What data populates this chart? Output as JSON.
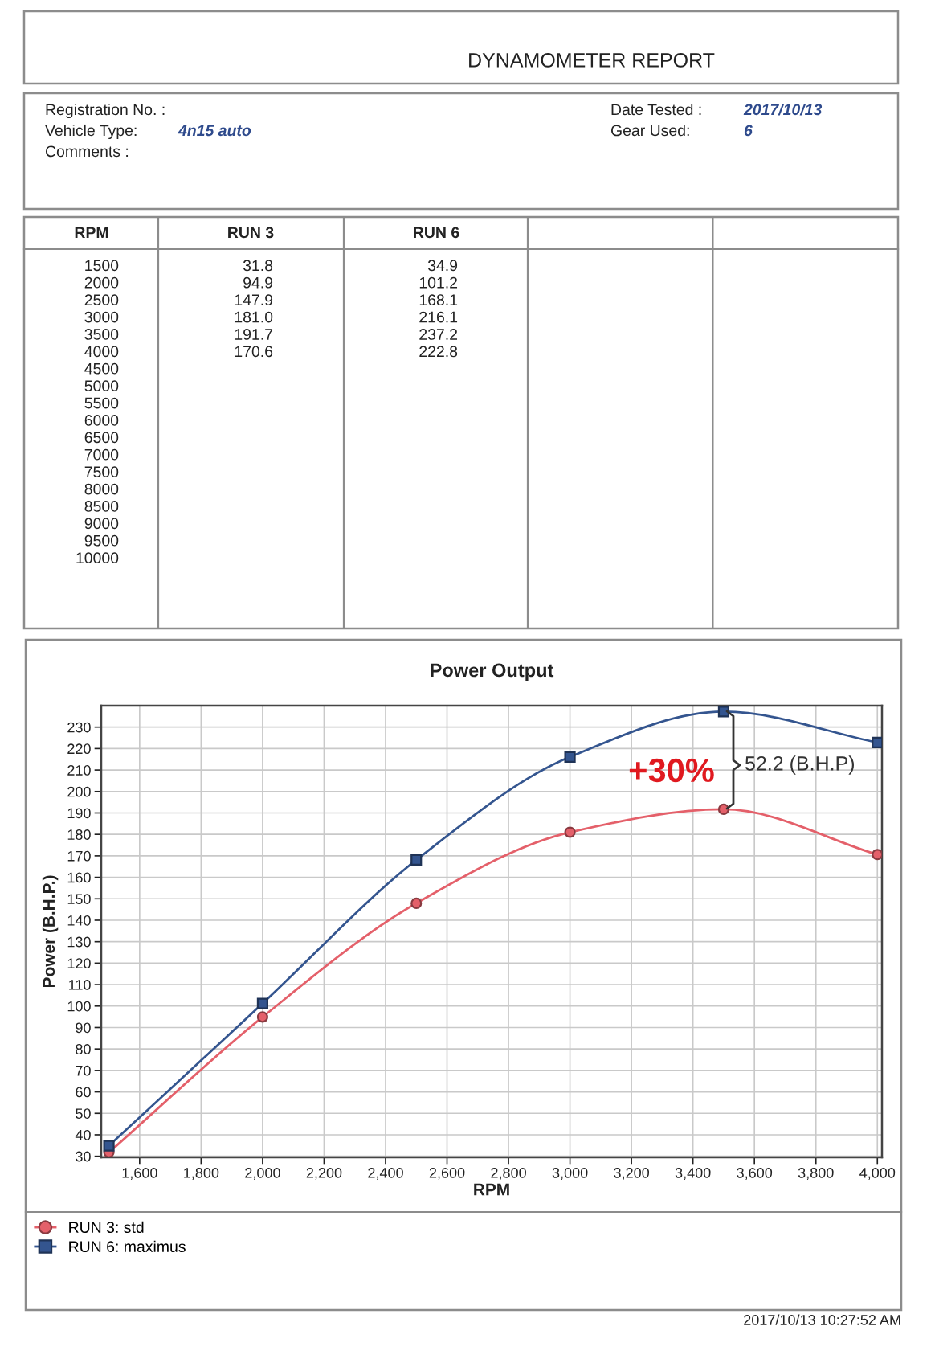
{
  "chart_data": {
    "type": "line",
    "title": "Power Output",
    "xlabel": "RPM",
    "ylabel": "Power (B.H.P.)",
    "x": [
      1500,
      2000,
      2500,
      3000,
      3500,
      4000
    ],
    "series": [
      {
        "name": "RUN 3: std",
        "color": "#e4606a",
        "marker": "circle",
        "values": [
          31.8,
          94.9,
          147.9,
          181.0,
          191.7,
          170.6
        ]
      },
      {
        "name": "RUN 6: maximus",
        "color": "#34558f",
        "marker": "square",
        "values": [
          34.9,
          101.2,
          168.1,
          216.1,
          237.2,
          222.8
        ]
      }
    ],
    "xlim": [
      1475,
      4015
    ],
    "ylim": [
      29.5,
      240
    ],
    "xticks": [
      {
        "value": 1600,
        "label": "1,600"
      },
      {
        "value": 1800,
        "label": "1,800"
      },
      {
        "value": 2000,
        "label": "2,000"
      },
      {
        "value": 2200,
        "label": "2,200"
      },
      {
        "value": 2400,
        "label": "2,400"
      },
      {
        "value": 2600,
        "label": "2,600"
      },
      {
        "value": 2800,
        "label": "2,800"
      },
      {
        "value": 3000,
        "label": "3,000"
      },
      {
        "value": 3200,
        "label": "3,200"
      },
      {
        "value": 3400,
        "label": "3,400"
      },
      {
        "value": 3600,
        "label": "3,600"
      },
      {
        "value": 3800,
        "label": "3,800"
      },
      {
        "value": 4000,
        "label": "4,000"
      }
    ],
    "yticks": [
      30,
      40,
      50,
      60,
      70,
      80,
      90,
      100,
      110,
      120,
      130,
      140,
      150,
      160,
      170,
      180,
      190,
      200,
      210,
      220,
      230
    ],
    "grid": true,
    "legend": "bottom",
    "line_style": "solid",
    "annotations": [
      "DYNAMOMETER REPORT",
      "Registration No. :",
      "Vehicle Type:",
      "4n15 auto",
      "Comments :",
      "Date Tested :",
      "2017/10/13",
      "Gear Used:",
      "6",
      "RPM",
      "RUN 3",
      "RUN 6",
      "1500",
      "2000",
      "2500",
      "3000",
      "3500",
      "4000",
      "4500",
      "5000",
      "5500",
      "6000",
      "6500",
      "7000",
      "7500",
      "8000",
      "8500",
      "9000",
      "9500",
      "10000",
      "31.8",
      "94.9",
      "147.9",
      "181.0",
      "191.7",
      "170.6",
      "34.9",
      "101.2",
      "168.1",
      "216.1",
      "237.2",
      "222.8",
      "+30%",
      "52.2 (B.H.P)",
      "2017/10/13 10:27:52 AM"
    ]
  }
}
